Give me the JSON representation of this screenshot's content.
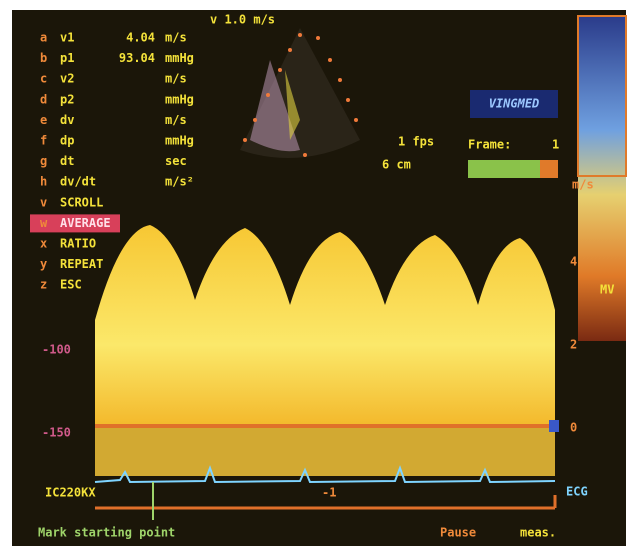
{
  "header": {
    "velocity_scale": "v 1.0 m/s"
  },
  "menu": [
    {
      "key": "a",
      "name": "v1",
      "value": "4.04",
      "unit": "m/s"
    },
    {
      "key": "b",
      "name": "p1",
      "value": "93.04",
      "unit": "mmHg"
    },
    {
      "key": "c",
      "name": "v2",
      "unit": "m/s"
    },
    {
      "key": "d",
      "name": "p2",
      "unit": "mmHg"
    },
    {
      "key": "e",
      "name": "dv",
      "unit": "m/s"
    },
    {
      "key": "f",
      "name": "dp",
      "unit": "mmHg"
    },
    {
      "key": "g",
      "name": "dt",
      "unit": "sec"
    },
    {
      "key": "h",
      "name": "dv/dt",
      "unit": "m/s²"
    },
    {
      "key": "v",
      "name": "SCROLL"
    },
    {
      "key": "w",
      "name": "AVERAGE",
      "highlight": true
    },
    {
      "key": "x",
      "name": "RATIO"
    },
    {
      "key": "y",
      "name": "REPEAT"
    },
    {
      "key": "z",
      "name": "ESC"
    }
  ],
  "status": {
    "frame_rate": "1 fps",
    "depth": "6 cm",
    "frame_label": "Frame:",
    "frame_number": "1",
    "logo": "VINGMED"
  },
  "scale": {
    "unit": "m/s",
    "ticks": [
      "4",
      "2",
      "0",
      "-1"
    ],
    "left_ticks": [
      "-100",
      "-150"
    ],
    "side_label": "MV"
  },
  "footer": {
    "probe": "IC220KX",
    "ecg": "ECG",
    "prompt": "Mark starting point",
    "pause": "Pause",
    "meas": "meas."
  }
}
